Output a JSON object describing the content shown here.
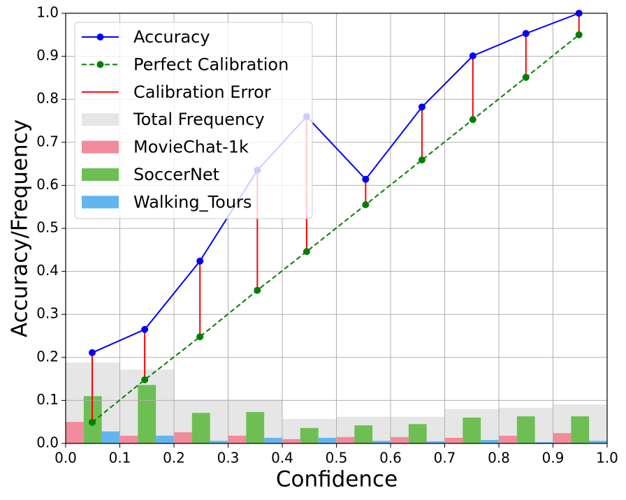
{
  "chart_data": {
    "type": "calibration",
    "xlabel": "Confidence",
    "ylabel": "Accuracy/Frequency",
    "xlim": [
      0,
      1
    ],
    "ylim": [
      0,
      1
    ],
    "xticks": [
      {
        "value": 0,
        "label": "0.0"
      },
      0.1,
      0.2,
      0.3,
      0.4,
      0.5,
      0.6,
      0.7,
      0.8,
      0.9,
      {
        "value": 1,
        "label": "1.0"
      }
    ],
    "yticks": [
      {
        "value": 0,
        "label": "0.0"
      },
      0.1,
      0.2,
      0.3,
      0.4,
      0.5,
      0.6,
      0.7,
      0.8,
      0.9,
      {
        "value": 1,
        "label": "1.0"
      }
    ],
    "grid": true,
    "legend": "upper left",
    "x": [
      0.049,
      0.146,
      0.248,
      0.354,
      0.445,
      0.554,
      0.658,
      0.752,
      0.85,
      0.948
    ],
    "bins": [
      0,
      0.1,
      0.2,
      0.3,
      0.4,
      0.5,
      0.6,
      0.7,
      0.8,
      0.9,
      1.0
    ],
    "series": [
      {
        "name": "Accuracy",
        "kind": "line",
        "color": "#0000ff",
        "values": [
          0.211,
          0.265,
          0.424,
          0.635,
          0.76,
          0.614,
          0.782,
          0.901,
          0.953,
          1.0
        ]
      },
      {
        "name": "Perfect Calibration",
        "kind": "line",
        "dashed": true,
        "color": "#008000",
        "values": [
          0.049,
          0.148,
          0.248,
          0.356,
          0.446,
          0.555,
          0.659,
          0.753,
          0.851,
          0.95
        ]
      },
      {
        "name": "Calibration Error",
        "kind": "error",
        "color": "#ff0000"
      },
      {
        "name": "Total Frequency",
        "kind": "total",
        "color": "#e6e6e6",
        "values": [
          0.188,
          0.172,
          0.102,
          0.102,
          0.057,
          0.062,
          0.062,
          0.08,
          0.083,
          0.091
        ]
      },
      {
        "name": "MovieChat-1k",
        "kind": "bar",
        "color": "#f28b9b",
        "values": [
          0.05,
          0.018,
          0.026,
          0.018,
          0.01,
          0.015,
          0.015,
          0.013,
          0.018,
          0.024
        ]
      },
      {
        "name": "SoccerNet",
        "kind": "bar",
        "color": "#6dbf54",
        "values": [
          0.11,
          0.136,
          0.071,
          0.073,
          0.036,
          0.042,
          0.045,
          0.06,
          0.063,
          0.063
        ]
      },
      {
        "name": "Walking_Tours",
        "kind": "bar",
        "color": "#62b5ee",
        "values": [
          0.028,
          0.018,
          0.006,
          0.013,
          0.013,
          0.006,
          0.005,
          0.008,
          0.003,
          0.006
        ]
      }
    ]
  }
}
